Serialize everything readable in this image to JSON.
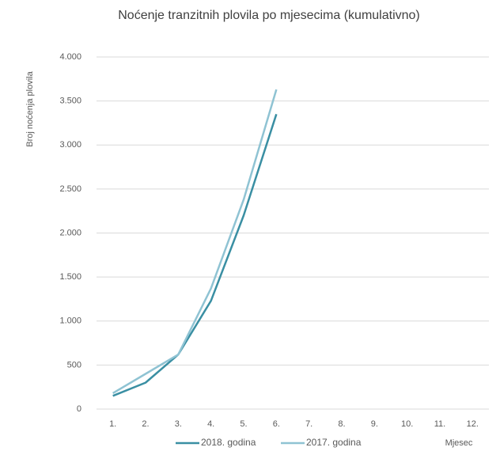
{
  "chart_data": {
    "type": "line",
    "title": "Noćenje tranzitnih plovila  po mjesecima  (kumulativno)",
    "y_label": "Broj noćenja plovila",
    "x_label": "Mjesec",
    "categories": [
      "1.",
      "2.",
      "3.",
      "4.",
      "5.",
      "6.",
      "7.",
      "8.",
      "9.",
      "10.",
      "11.",
      "12."
    ],
    "series": [
      {
        "name": "2018. godina",
        "color": "#3a8fa3",
        "values": [
          150,
          300,
          620,
          1230,
          2200,
          3350,
          null,
          null,
          null,
          null,
          null,
          null
        ]
      },
      {
        "name": "2017. godina",
        "color": "#8fc3d3",
        "values": [
          180,
          400,
          620,
          1370,
          2380,
          3630,
          null,
          null,
          null,
          null,
          null,
          null
        ]
      }
    ],
    "ylim": [
      0,
      4000
    ],
    "yticks": [
      0,
      500,
      {
        "value": 1000,
        "label": "1.000"
      },
      {
        "value": 1500,
        "label": "1.500"
      },
      {
        "value": 2000,
        "label": "2.000"
      },
      {
        "value": 2500,
        "label": "2.500"
      },
      {
        "value": 3000,
        "label": "3.000"
      },
      {
        "value": 3500,
        "label": "3.500"
      },
      {
        "value": 4000,
        "label": "4.000"
      }
    ],
    "grid": true,
    "legend": "bottom"
  }
}
